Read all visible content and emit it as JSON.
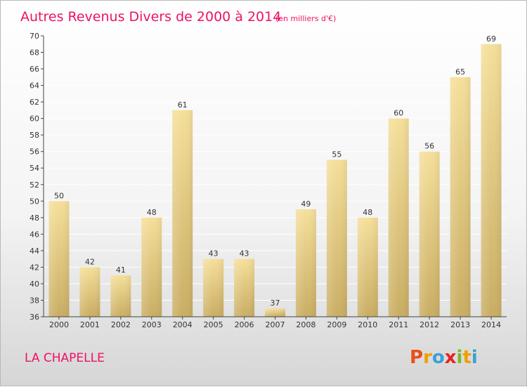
{
  "chart_data": {
    "type": "bar",
    "title": "Autres Revenus Divers de 2000 à 2014",
    "subtitle": "(en milliers d'€)",
    "categories": [
      "2000",
      "2001",
      "2002",
      "2003",
      "2004",
      "2005",
      "2006",
      "2007",
      "2008",
      "2009",
      "2010",
      "2011",
      "2012",
      "2013",
      "2014"
    ],
    "values": [
      50,
      42,
      41,
      48,
      61,
      43,
      43,
      37,
      49,
      55,
      48,
      60,
      56,
      65,
      69
    ],
    "ylim": [
      36,
      70
    ],
    "yticks": [
      36,
      38,
      40,
      42,
      44,
      46,
      48,
      50,
      52,
      54,
      56,
      58,
      60,
      62,
      64,
      66,
      68,
      70
    ],
    "grid": true,
    "xlabel": "",
    "ylabel": ""
  },
  "commune_name": "LA CHAPELLE",
  "logo": {
    "letters": [
      "P",
      "r",
      "o",
      "x",
      "i",
      "t",
      "i"
    ],
    "colors": [
      "#e8501c",
      "#f0a000",
      "#3aa0d8",
      "#e8221c",
      "#7ab828",
      "#f0a000",
      "#3aa0d8"
    ]
  },
  "colors": {
    "bar_light": "#f5df9a",
    "bar_dark": "#c9ad63",
    "title": "#ee1166",
    "grid": "#ffffff",
    "axis": "#444444"
  }
}
